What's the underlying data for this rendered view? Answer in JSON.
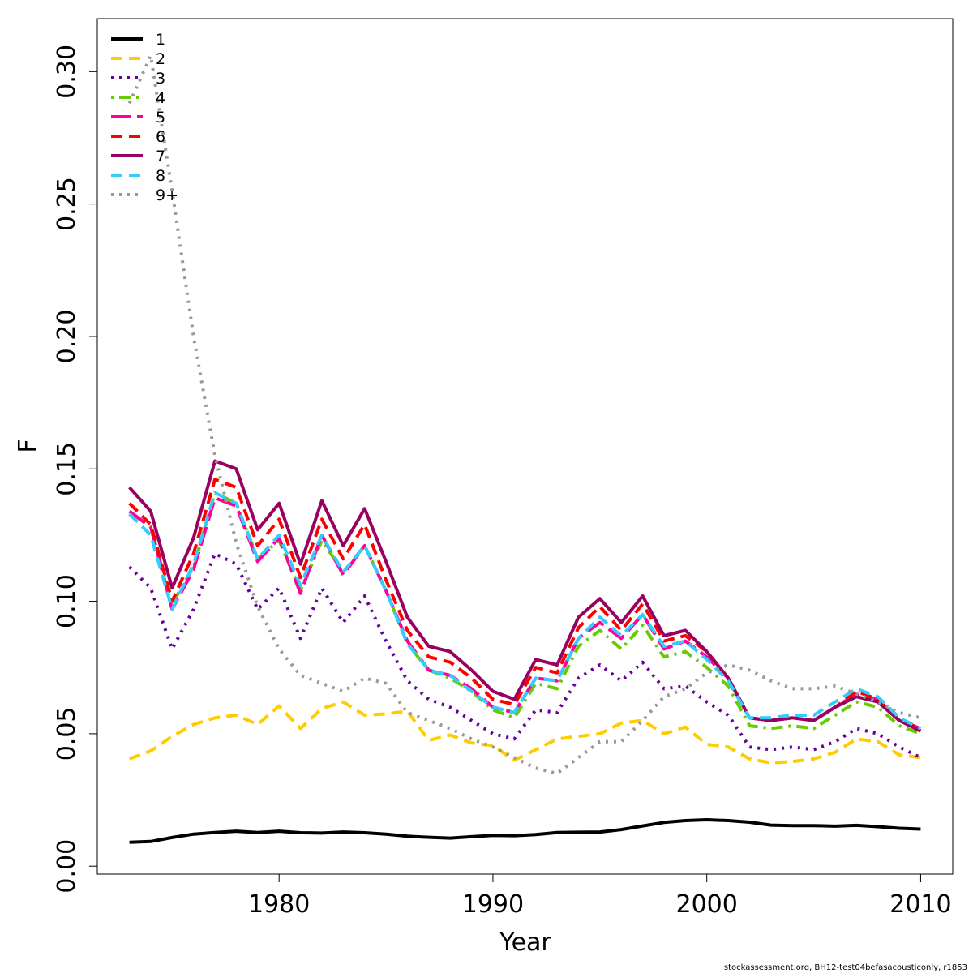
{
  "chart_data": {
    "type": "line",
    "title": "",
    "xlabel": "Year",
    "ylabel": "F",
    "xlim": [
      1971.5,
      2011.5
    ],
    "ylim": [
      -0.003,
      0.32
    ],
    "x_ticks": [
      1980,
      1990,
      2000,
      2010
    ],
    "x_tick_labels": [
      "1980",
      "1990",
      "2000",
      "2010"
    ],
    "y_ticks": [
      0.0,
      0.05,
      0.1,
      0.15,
      0.2,
      0.25,
      0.3
    ],
    "y_tick_labels": [
      "0.00",
      "0.05",
      "0.10",
      "0.15",
      "0.20",
      "0.25",
      "0.30"
    ],
    "grid": false,
    "legend_position": "top-left",
    "x": [
      1973,
      1974,
      1975,
      1976,
      1977,
      1978,
      1979,
      1980,
      1981,
      1982,
      1983,
      1984,
      1985,
      1986,
      1987,
      1988,
      1989,
      1990,
      1991,
      1992,
      1993,
      1994,
      1995,
      1996,
      1997,
      1998,
      1999,
      2000,
      2001,
      2002,
      2003,
      2004,
      2005,
      2006,
      2007,
      2008,
      2009,
      2010
    ],
    "series": [
      {
        "name": "1",
        "color": "#000000",
        "dash": "solid",
        "values": [
          0.009,
          0.0093,
          0.0108,
          0.0121,
          0.0127,
          0.0132,
          0.0127,
          0.0132,
          0.0126,
          0.0125,
          0.0129,
          0.0126,
          0.0121,
          0.0113,
          0.0109,
          0.0106,
          0.0111,
          0.0116,
          0.0115,
          0.0119,
          0.0127,
          0.0128,
          0.0129,
          0.0138,
          0.0152,
          0.0165,
          0.0172,
          0.0175,
          0.0172,
          0.0166,
          0.0155,
          0.0153,
          0.0153,
          0.0151,
          0.0154,
          0.0149,
          0.0143,
          0.014
        ]
      },
      {
        "name": "2",
        "color": "#FFCC00",
        "dash": "dashed",
        "values": [
          0.0405,
          0.0435,
          0.049,
          0.0535,
          0.056,
          0.057,
          0.0535,
          0.0605,
          0.052,
          0.0595,
          0.062,
          0.057,
          0.0575,
          0.0585,
          0.0475,
          0.0495,
          0.0465,
          0.0455,
          0.04,
          0.044,
          0.048,
          0.049,
          0.05,
          0.054,
          0.055,
          0.05,
          0.0525,
          0.046,
          0.045,
          0.0405,
          0.039,
          0.0395,
          0.0405,
          0.043,
          0.048,
          0.047,
          0.042,
          0.041
        ]
      },
      {
        "name": "3",
        "color": "#660099",
        "dash": "dotted",
        "values": [
          0.113,
          0.105,
          0.082,
          0.097,
          0.118,
          0.114,
          0.097,
          0.105,
          0.086,
          0.105,
          0.092,
          0.102,
          0.085,
          0.07,
          0.063,
          0.06,
          0.055,
          0.05,
          0.048,
          0.059,
          0.058,
          0.071,
          0.076,
          0.07,
          0.077,
          0.067,
          0.068,
          0.062,
          0.057,
          0.045,
          0.044,
          0.045,
          0.044,
          0.047,
          0.052,
          0.05,
          0.045,
          0.041
        ]
      },
      {
        "name": "4",
        "color": "#66CC00",
        "dash": "dashdot",
        "values": [
          0.134,
          0.128,
          0.099,
          0.113,
          0.141,
          0.137,
          0.116,
          0.123,
          0.104,
          0.123,
          0.111,
          0.121,
          0.104,
          0.084,
          0.074,
          0.071,
          0.066,
          0.059,
          0.056,
          0.069,
          0.067,
          0.083,
          0.089,
          0.082,
          0.091,
          0.079,
          0.081,
          0.075,
          0.068,
          0.053,
          0.052,
          0.053,
          0.052,
          0.057,
          0.062,
          0.06,
          0.053,
          0.05
        ]
      },
      {
        "name": "5",
        "color": "#FF0099",
        "dash": "longdash",
        "values": [
          0.134,
          0.128,
          0.097,
          0.112,
          0.139,
          0.136,
          0.115,
          0.124,
          0.103,
          0.125,
          0.11,
          0.121,
          0.104,
          0.085,
          0.074,
          0.072,
          0.067,
          0.06,
          0.058,
          0.071,
          0.07,
          0.086,
          0.092,
          0.086,
          0.095,
          0.082,
          0.085,
          0.079,
          0.071,
          0.056,
          0.055,
          0.056,
          0.055,
          0.06,
          0.065,
          0.063,
          0.055,
          0.052
        ]
      },
      {
        "name": "6",
        "color": "#FF0000",
        "dash": "dashed",
        "values": [
          0.137,
          0.129,
          0.1,
          0.118,
          0.146,
          0.143,
          0.121,
          0.131,
          0.109,
          0.131,
          0.116,
          0.129,
          0.108,
          0.089,
          0.079,
          0.077,
          0.071,
          0.063,
          0.061,
          0.075,
          0.073,
          0.09,
          0.098,
          0.089,
          0.099,
          0.085,
          0.087,
          0.081,
          0.071,
          0.056,
          0.055,
          0.056,
          0.055,
          0.06,
          0.066,
          0.063,
          0.055,
          0.052
        ]
      },
      {
        "name": "7",
        "color": "#99005F",
        "dash": "solid",
        "values": [
          0.143,
          0.134,
          0.105,
          0.124,
          0.153,
          0.15,
          0.127,
          0.137,
          0.114,
          0.138,
          0.121,
          0.135,
          0.115,
          0.094,
          0.083,
          0.081,
          0.074,
          0.066,
          0.063,
          0.078,
          0.076,
          0.094,
          0.101,
          0.092,
          0.102,
          0.087,
          0.089,
          0.081,
          0.071,
          0.056,
          0.055,
          0.056,
          0.055,
          0.06,
          0.064,
          0.062,
          0.055,
          0.051
        ]
      },
      {
        "name": "8",
        "color": "#33CCFF",
        "dash": "dashed",
        "values": [
          0.133,
          0.125,
          0.097,
          0.114,
          0.141,
          0.137,
          0.116,
          0.125,
          0.106,
          0.125,
          0.111,
          0.121,
          0.104,
          0.084,
          0.074,
          0.072,
          0.066,
          0.06,
          0.058,
          0.071,
          0.07,
          0.086,
          0.094,
          0.087,
          0.095,
          0.083,
          0.085,
          0.078,
          0.07,
          0.056,
          0.056,
          0.057,
          0.057,
          0.062,
          0.067,
          0.064,
          0.056,
          0.052
        ]
      },
      {
        "name": "9+",
        "color": "#999999",
        "dash": "dotted",
        "values": [
          0.288,
          0.306,
          0.255,
          0.2,
          0.155,
          0.122,
          0.098,
          0.082,
          0.072,
          0.069,
          0.066,
          0.071,
          0.069,
          0.058,
          0.055,
          0.052,
          0.048,
          0.045,
          0.041,
          0.037,
          0.035,
          0.041,
          0.047,
          0.047,
          0.055,
          0.064,
          0.067,
          0.073,
          0.076,
          0.074,
          0.07,
          0.067,
          0.067,
          0.068,
          0.065,
          0.062,
          0.058,
          0.056
        ]
      }
    ]
  },
  "footer": {
    "note": "stockassessment.org, BH12-test04befasacousticonly, r1853"
  }
}
